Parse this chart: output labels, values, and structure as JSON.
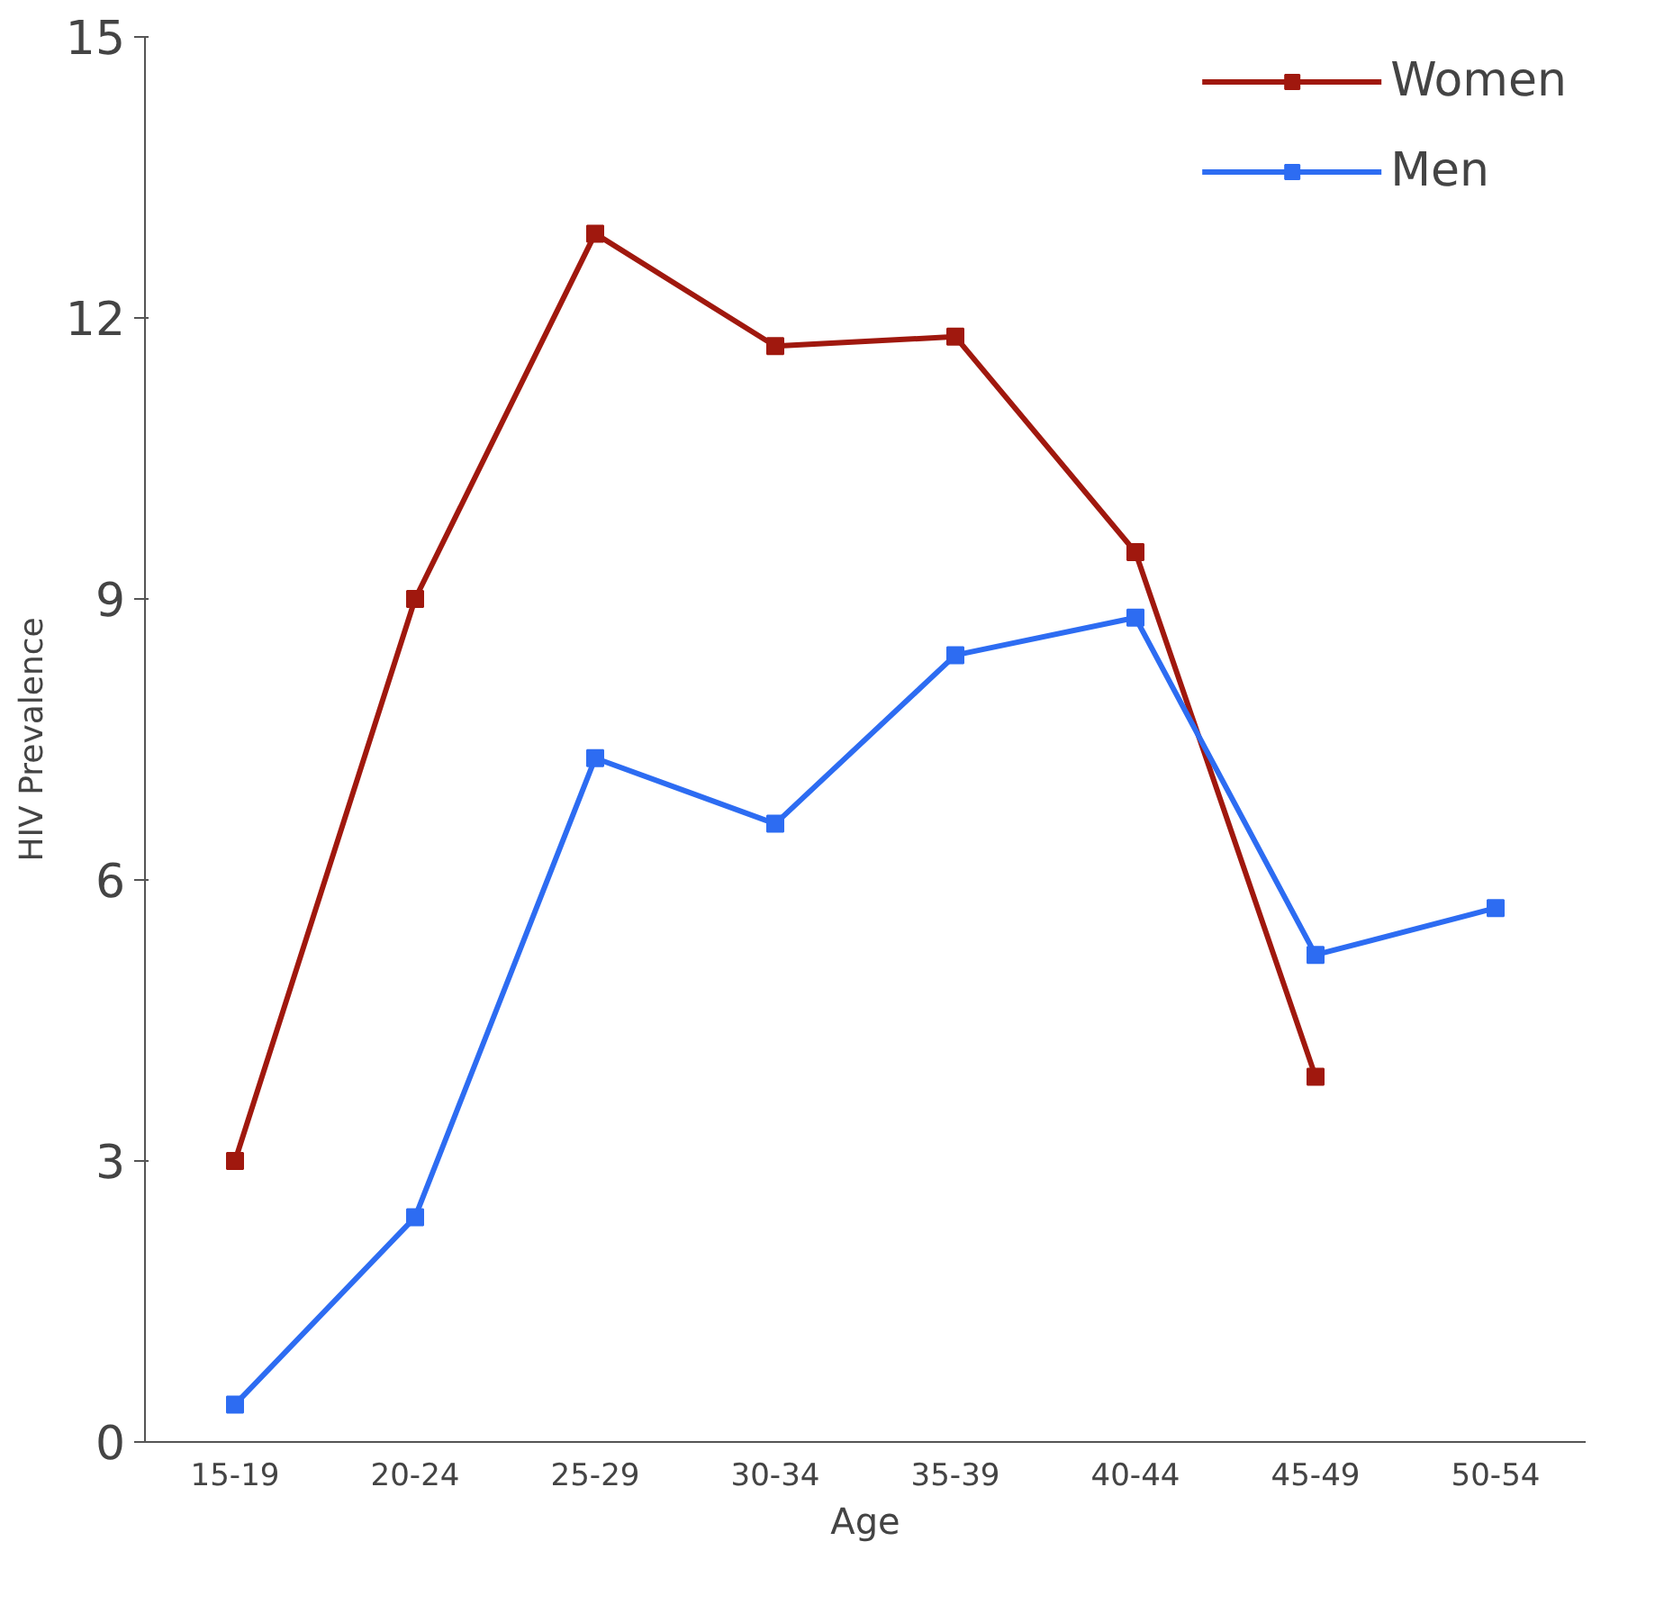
{
  "chart_data": {
    "type": "line",
    "ylabel": "HIV Prevalence",
    "xlabel": "Age",
    "categories": [
      "15-19",
      "20-24",
      "25-29",
      "30-34",
      "35-39",
      "40-44",
      "45-49",
      "50-54"
    ],
    "series": [
      {
        "name": "Women",
        "color": "#a0180e",
        "values": [
          3.0,
          9.0,
          12.9,
          11.7,
          11.8,
          9.5,
          3.9,
          null
        ]
      },
      {
        "name": "Men",
        "color": "#2d6cf2",
        "values": [
          0.4,
          2.4,
          7.3,
          6.6,
          8.4,
          8.8,
          5.2,
          5.7
        ]
      }
    ],
    "ylim": [
      0,
      15
    ],
    "yticks": [
      0,
      3,
      6,
      9,
      12,
      15
    ],
    "grid": false,
    "legend": "top right",
    "marker": "square",
    "line_style": "solid"
  }
}
